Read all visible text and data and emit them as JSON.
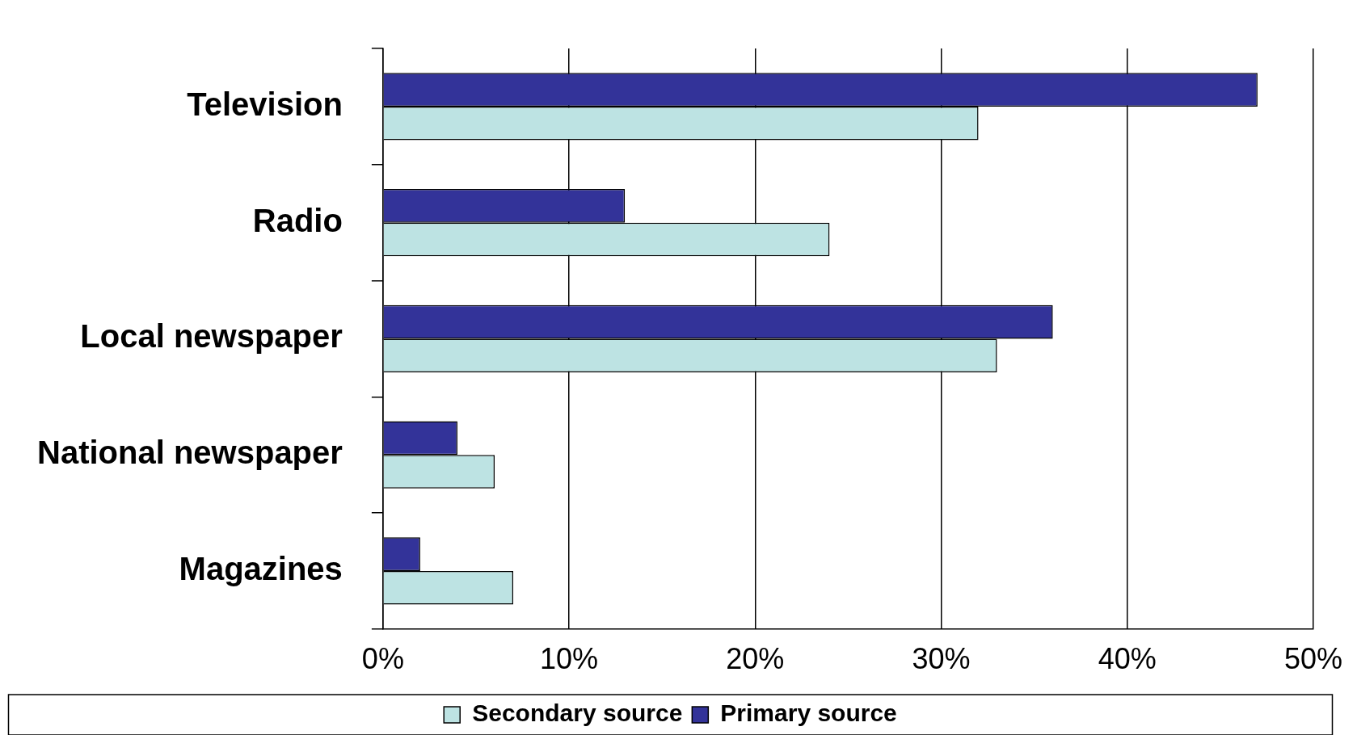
{
  "chart_data": {
    "type": "bar",
    "orientation": "horizontal",
    "categories": [
      "Television",
      "Radio",
      "Local newspaper",
      "National newspaper",
      "Magazines"
    ],
    "series": [
      {
        "name": "Secondary source",
        "color": "#bde3e3",
        "values": [
          32,
          24,
          33,
          6,
          7
        ]
      },
      {
        "name": "Primary source",
        "color": "#333399",
        "values": [
          47,
          13,
          36,
          4,
          2
        ]
      }
    ],
    "xlim": [
      0,
      50
    ],
    "xticks": [
      {
        "value": 0,
        "label": "0%"
      },
      {
        "value": 10,
        "label": "10%"
      },
      {
        "value": 20,
        "label": "20%"
      },
      {
        "value": 30,
        "label": "30%"
      },
      {
        "value": 40,
        "label": "40%"
      },
      {
        "value": 50,
        "label": "50%"
      }
    ],
    "grid": "x",
    "legend": "bottom"
  }
}
